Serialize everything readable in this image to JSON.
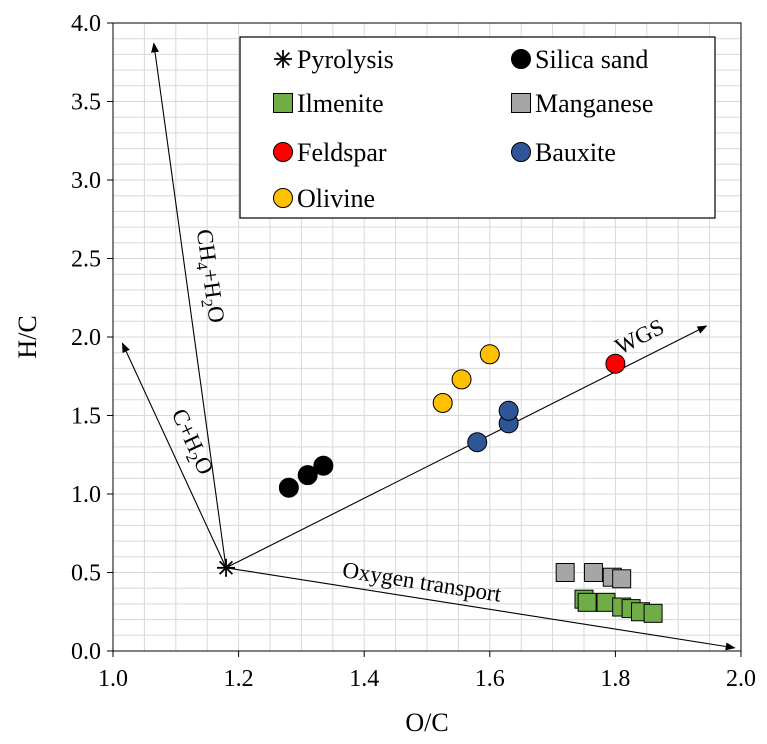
{
  "chart_data": {
    "type": "scatter",
    "xlabel": "O/C",
    "ylabel": "H/C",
    "xlim": [
      1.0,
      2.0
    ],
    "ylim": [
      0.0,
      4.0
    ],
    "x_ticks": [
      "1.0",
      "1.2",
      "1.4",
      "1.6",
      "1.8",
      "2.0"
    ],
    "y_ticks": [
      "0.0",
      "0.5",
      "1.0",
      "1.5",
      "2.0",
      "2.5",
      "3.0",
      "3.5",
      "4.0"
    ],
    "grid": true,
    "legend_position": "top-right",
    "series": [
      {
        "name": "Pyrolysis",
        "marker": "star",
        "color": "#000000",
        "x": [
          1.18
        ],
        "y": [
          0.53
        ]
      },
      {
        "name": "Silica sand",
        "marker": "circle",
        "color": "#000000",
        "x": [
          1.28,
          1.31,
          1.335
        ],
        "y": [
          1.04,
          1.12,
          1.18
        ]
      },
      {
        "name": "Ilmenite",
        "marker": "square",
        "color": "#70ad47",
        "x": [
          1.75,
          1.755,
          1.785,
          1.81,
          1.825,
          1.84,
          1.86
        ],
        "y": [
          0.33,
          0.31,
          0.31,
          0.28,
          0.27,
          0.25,
          0.24
        ]
      },
      {
        "name": "Manganese",
        "marker": "square",
        "color": "#a6a6a6",
        "x": [
          1.72,
          1.765,
          1.795,
          1.81
        ],
        "y": [
          0.5,
          0.5,
          0.47,
          0.46
        ]
      },
      {
        "name": "Feldspar",
        "marker": "circle",
        "color": "#ff0000",
        "x": [
          1.8
        ],
        "y": [
          1.83
        ]
      },
      {
        "name": "Bauxite",
        "marker": "circle",
        "color": "#2e5597",
        "x": [
          1.58,
          1.63,
          1.63
        ],
        "y": [
          1.33,
          1.45,
          1.53
        ]
      },
      {
        "name": "Olivine",
        "marker": "circle",
        "color": "#ffc000",
        "x": [
          1.525,
          1.555,
          1.6
        ],
        "y": [
          1.58,
          1.73,
          1.89
        ]
      }
    ],
    "vectors": [
      {
        "label_parts": [
          "CH",
          "4",
          "+H",
          "2",
          "O"
        ],
        "from": [
          1.18,
          0.53
        ],
        "to": [
          1.065,
          3.87
        ]
      },
      {
        "label_parts": [
          "C+H",
          "2",
          "O"
        ],
        "from": [
          1.18,
          0.53
        ],
        "to": [
          1.015,
          1.96
        ]
      },
      {
        "label_parts": [
          "WGS"
        ],
        "from": [
          1.18,
          0.53
        ],
        "to": [
          1.945,
          2.07
        ]
      },
      {
        "label_parts": [
          "Oxygen transport"
        ],
        "from": [
          1.18,
          0.53
        ],
        "to": [
          1.99,
          0.02
        ]
      }
    ]
  }
}
